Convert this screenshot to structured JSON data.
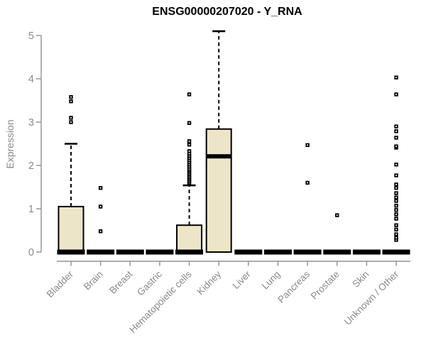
{
  "colors": {
    "background": "#ffffff",
    "title": "#000000",
    "axis": "#919191",
    "labels": "#8a8a8a",
    "marks": "#000000",
    "box_fill": "#ece5c8"
  },
  "chart_data": {
    "type": "boxplot",
    "title": "ENSG00000207020 - Y_RNA",
    "ylabel": "Expression",
    "xlabel": "",
    "ylim": [
      0,
      5
    ],
    "yticks": [
      "0",
      "1",
      "2",
      "3",
      "4",
      "5"
    ],
    "grid": false,
    "legend": false,
    "categories": [
      "Bladder",
      "Brain",
      "Breast",
      "Gastric",
      "Hematopoietic cells",
      "Kidney",
      "Liver",
      "Lung",
      "Pancreas",
      "Prostate",
      "Skin",
      "Unknown / Other"
    ],
    "series": [
      {
        "name": "Bladder",
        "min": 0,
        "q1": 0,
        "median": 0,
        "q3": 1.05,
        "whisker_low": 0,
        "whisker_high": 2.5,
        "outliers": [
          3.0,
          3.1,
          3.48,
          3.58
        ]
      },
      {
        "name": "Brain",
        "min": 0,
        "q1": 0,
        "median": 0,
        "q3": 0,
        "whisker_low": 0,
        "whisker_high": 0,
        "outliers": [
          0.48,
          1.05,
          1.48
        ]
      },
      {
        "name": "Breast",
        "min": 0,
        "q1": 0,
        "median": 0,
        "q3": 0,
        "whisker_low": 0,
        "whisker_high": 0,
        "outliers": []
      },
      {
        "name": "Gastric",
        "min": 0,
        "q1": 0,
        "median": 0,
        "q3": 0,
        "whisker_low": 0,
        "whisker_high": 0,
        "outliers": []
      },
      {
        "name": "Hematopoietic cells",
        "min": 0,
        "q1": 0,
        "median": 0,
        "q3": 0.62,
        "whisker_low": 0,
        "whisker_high": 1.54,
        "outliers": [
          1.6,
          1.64,
          1.68,
          1.72,
          1.76,
          1.8,
          1.84,
          1.88,
          1.92,
          1.97,
          2.02,
          2.07,
          2.12,
          2.17,
          2.22,
          2.27,
          2.33,
          2.48,
          2.56,
          2.98,
          3.64
        ]
      },
      {
        "name": "Kidney",
        "min": 0,
        "q1": 0,
        "median": 2.21,
        "q3": 2.84,
        "whisker_low": 0,
        "whisker_high": 5.1,
        "outliers": []
      },
      {
        "name": "Liver",
        "min": 0,
        "q1": 0,
        "median": 0,
        "q3": 0,
        "whisker_low": 0,
        "whisker_high": 0,
        "outliers": []
      },
      {
        "name": "Lung",
        "min": 0,
        "q1": 0,
        "median": 0,
        "q3": 0,
        "whisker_low": 0,
        "whisker_high": 0,
        "outliers": []
      },
      {
        "name": "Pancreas",
        "min": 0,
        "q1": 0,
        "median": 0,
        "q3": 0,
        "whisker_low": 0,
        "whisker_high": 0,
        "outliers": [
          1.6,
          2.47
        ]
      },
      {
        "name": "Prostate",
        "min": 0,
        "q1": 0,
        "median": 0,
        "q3": 0,
        "whisker_low": 0,
        "whisker_high": 0,
        "outliers": [
          0.85
        ]
      },
      {
        "name": "Skin",
        "min": 0,
        "q1": 0,
        "median": 0,
        "q3": 0,
        "whisker_low": 0,
        "whisker_high": 0,
        "outliers": []
      },
      {
        "name": "Unknown / Other",
        "min": 0,
        "q1": 0,
        "median": 0,
        "q3": 0,
        "whisker_low": 0,
        "whisker_high": 0,
        "outliers": [
          0.28,
          0.33,
          0.41,
          0.52,
          0.62,
          0.77,
          0.87,
          0.97,
          1.07,
          1.18,
          1.26,
          1.36,
          1.48,
          1.56,
          1.77,
          2.02,
          2.41,
          2.44,
          2.64,
          2.79,
          2.9,
          3.64,
          4.03
        ]
      }
    ]
  }
}
